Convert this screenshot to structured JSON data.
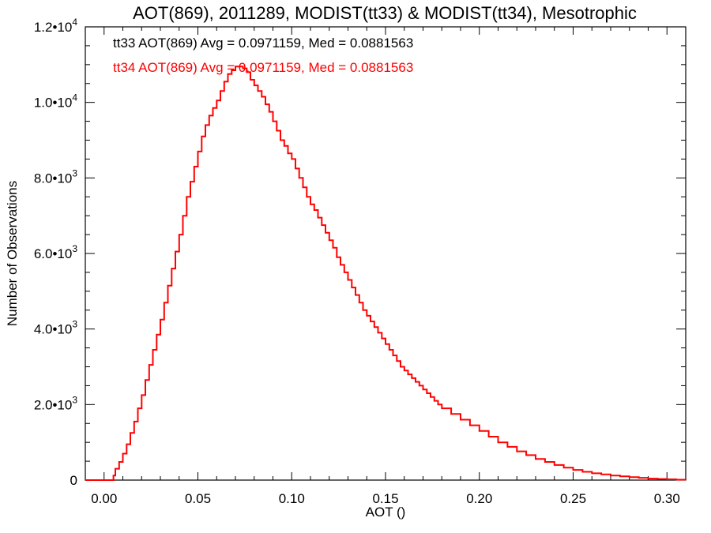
{
  "chart_data": {
    "type": "line",
    "title": "AOT(869), 2011289, MODIST(tt33) & MODIST(tt34), Mesotrophic",
    "xlabel": "AOT ()",
    "ylabel": "Number of Observations",
    "xlim": [
      -0.01,
      0.31
    ],
    "ylim": [
      0,
      12000
    ],
    "xticks": [
      0.0,
      0.05,
      0.1,
      0.15,
      0.2,
      0.25,
      0.3
    ],
    "xtick_labels": [
      "0.00",
      "0.05",
      "0.10",
      "0.15",
      "0.20",
      "0.25",
      "0.30"
    ],
    "ytick_labels": [
      {
        "value": 0,
        "mantissa": "0",
        "exponent": ""
      },
      {
        "value": 2000,
        "mantissa": "2.0•10",
        "exponent": "3"
      },
      {
        "value": 4000,
        "mantissa": "4.0•10",
        "exponent": "3"
      },
      {
        "value": 6000,
        "mantissa": "6.0•10",
        "exponent": "3"
      },
      {
        "value": 8000,
        "mantissa": "8.0•10",
        "exponent": "3"
      },
      {
        "value": 10000,
        "mantissa": "1.0•10",
        "exponent": "4"
      },
      {
        "value": 12000,
        "mantissa": "1.2•10",
        "exponent": "4"
      }
    ],
    "annotations": [
      {
        "text": "tt33 AOT(869) Avg = 0.0971159, Med = 0.0881563",
        "color": "#000000"
      },
      {
        "text": "tt34 AOT(869) Avg = 0.0971159, Med = 0.0881563",
        "color": "#ff0000"
      }
    ],
    "series": [
      {
        "color": "#ff0000",
        "style": "step",
        "x": [
          -0.01,
          0.0,
          0.005,
          0.006,
          0.008,
          0.01,
          0.012,
          0.014,
          0.016,
          0.018,
          0.02,
          0.022,
          0.024,
          0.026,
          0.028,
          0.03,
          0.032,
          0.034,
          0.036,
          0.038,
          0.04,
          0.042,
          0.044,
          0.046,
          0.048,
          0.05,
          0.052,
          0.054,
          0.056,
          0.058,
          0.06,
          0.062,
          0.064,
          0.066,
          0.068,
          0.07,
          0.072,
          0.074,
          0.076,
          0.078,
          0.08,
          0.082,
          0.084,
          0.086,
          0.088,
          0.09,
          0.092,
          0.094,
          0.096,
          0.098,
          0.1,
          0.102,
          0.104,
          0.106,
          0.108,
          0.11,
          0.112,
          0.114,
          0.116,
          0.118,
          0.12,
          0.122,
          0.124,
          0.126,
          0.128,
          0.13,
          0.132,
          0.134,
          0.136,
          0.138,
          0.14,
          0.142,
          0.144,
          0.146,
          0.148,
          0.15,
          0.152,
          0.154,
          0.156,
          0.158,
          0.16,
          0.162,
          0.164,
          0.166,
          0.168,
          0.17,
          0.172,
          0.174,
          0.176,
          0.178,
          0.18,
          0.185,
          0.19,
          0.195,
          0.2,
          0.205,
          0.21,
          0.215,
          0.22,
          0.225,
          0.23,
          0.235,
          0.24,
          0.245,
          0.25,
          0.255,
          0.26,
          0.265,
          0.27,
          0.275,
          0.28,
          0.285,
          0.29,
          0.295,
          0.3,
          0.305,
          0.31
        ],
        "y": [
          0,
          0,
          120,
          300,
          480,
          700,
          950,
          1250,
          1550,
          1900,
          2250,
          2650,
          3050,
          3450,
          3850,
          4250,
          4700,
          5150,
          5600,
          6050,
          6500,
          7000,
          7500,
          7900,
          8300,
          8700,
          9100,
          9400,
          9650,
          9850,
          10050,
          10300,
          10550,
          10750,
          10850,
          10950,
          10950,
          10900,
          10800,
          10600,
          10450,
          10300,
          10150,
          9950,
          9750,
          9500,
          9250,
          9000,
          8850,
          8650,
          8500,
          8250,
          8000,
          7750,
          7500,
          7300,
          7150,
          6950,
          6750,
          6550,
          6350,
          6150,
          5900,
          5700,
          5500,
          5300,
          5100,
          4900,
          4700,
          4500,
          4350,
          4200,
          4050,
          3900,
          3750,
          3600,
          3450,
          3300,
          3150,
          3000,
          2900,
          2800,
          2700,
          2600,
          2500,
          2400,
          2300,
          2200,
          2100,
          2000,
          1900,
          1750,
          1600,
          1450,
          1300,
          1150,
          1000,
          880,
          760,
          660,
          560,
          480,
          400,
          330,
          270,
          220,
          180,
          150,
          120,
          100,
          80,
          60,
          40,
          30,
          20,
          10,
          0
        ]
      }
    ]
  }
}
